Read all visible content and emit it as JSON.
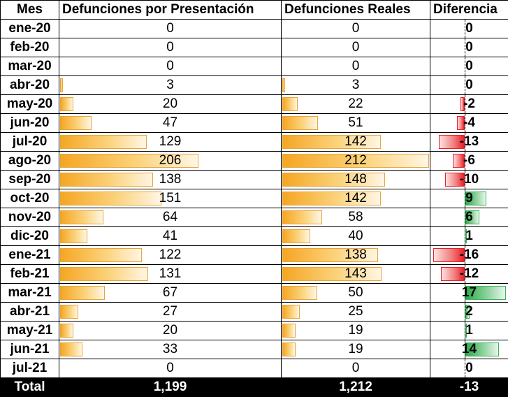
{
  "headers": [
    "Mes",
    "Defunciones por Presentación",
    "Defunciones Reales",
    "Diferencia"
  ],
  "rows": [
    {
      "mes": "ene-20",
      "presentacion": "0",
      "reales": "0",
      "diferencia": "0"
    },
    {
      "mes": "feb-20",
      "presentacion": "0",
      "reales": "0",
      "diferencia": "0"
    },
    {
      "mes": "mar-20",
      "presentacion": "0",
      "reales": "0",
      "diferencia": "0"
    },
    {
      "mes": "abr-20",
      "presentacion": "3",
      "reales": "3",
      "diferencia": "0"
    },
    {
      "mes": "may-20",
      "presentacion": "20",
      "reales": "22",
      "diferencia": "-2"
    },
    {
      "mes": "jun-20",
      "presentacion": "47",
      "reales": "51",
      "diferencia": "-4"
    },
    {
      "mes": "jul-20",
      "presentacion": "129",
      "reales": "142",
      "diferencia": "-13"
    },
    {
      "mes": "ago-20",
      "presentacion": "206",
      "reales": "212",
      "diferencia": "-6"
    },
    {
      "mes": "sep-20",
      "presentacion": "138",
      "reales": "148",
      "diferencia": "-10"
    },
    {
      "mes": "oct-20",
      "presentacion": "151",
      "reales": "142",
      "diferencia": "9"
    },
    {
      "mes": "nov-20",
      "presentacion": "64",
      "reales": "58",
      "diferencia": "6"
    },
    {
      "mes": "dic-20",
      "presentacion": "41",
      "reales": "40",
      "diferencia": "1"
    },
    {
      "mes": "ene-21",
      "presentacion": "122",
      "reales": "138",
      "diferencia": "-16"
    },
    {
      "mes": "feb-21",
      "presentacion": "131",
      "reales": "143",
      "diferencia": "-12"
    },
    {
      "mes": "mar-21",
      "presentacion": "67",
      "reales": "50",
      "diferencia": "17"
    },
    {
      "mes": "abr-21",
      "presentacion": "27",
      "reales": "25",
      "diferencia": "2"
    },
    {
      "mes": "may-21",
      "presentacion": "20",
      "reales": "19",
      "diferencia": "1"
    },
    {
      "mes": "jun-21",
      "presentacion": "33",
      "reales": "19",
      "diferencia": "14"
    },
    {
      "mes": "jul-21",
      "presentacion": "0",
      "reales": "0",
      "diferencia": "0"
    }
  ],
  "totals": {
    "label": "Total",
    "presentacion": "1,199",
    "reales": "1,212",
    "diferencia": "-13"
  },
  "colors": {
    "data_bar": "#f5a623",
    "negative_bar": "#e8202a",
    "positive_bar": "#2aa84a",
    "total_row_bg": "#000000",
    "total_row_text": "#ffffff"
  }
}
